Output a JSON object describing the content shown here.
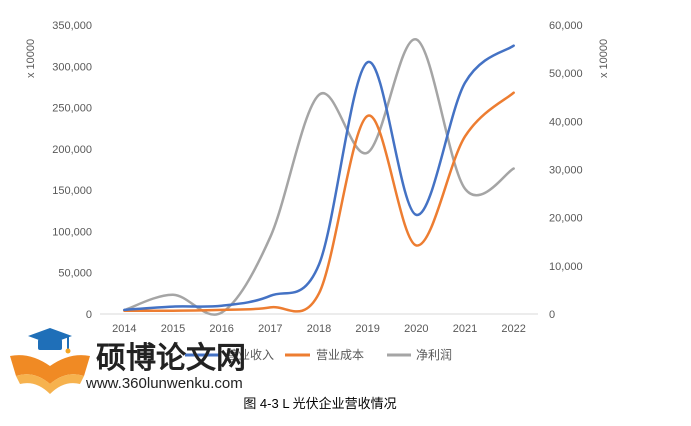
{
  "chart_data": {
    "type": "line",
    "categories": [
      "2014",
      "2015",
      "2016",
      "2017",
      "2018",
      "2019",
      "2020",
      "2021",
      "2022"
    ],
    "series": [
      {
        "name": "营业收入",
        "axis": "left",
        "color": "#4472C4",
        "values": [
          5000,
          9000,
          10000,
          22000,
          60000,
          305000,
          120000,
          280000,
          325000
        ]
      },
      {
        "name": "营业成本",
        "axis": "left",
        "color": "#ED7D31",
        "values": [
          4000,
          4000,
          5000,
          8000,
          25000,
          240000,
          83000,
          215000,
          268000
        ]
      },
      {
        "name": "净利润",
        "axis": "right",
        "color": "#A5A5A5",
        "values": [
          800,
          4000,
          300,
          16000,
          45500,
          33500,
          57000,
          26000,
          30200
        ]
      }
    ],
    "y_left": {
      "min": 0,
      "max": 350000,
      "step": 50000,
      "ticks": [
        "0",
        "50,000",
        "100,000",
        "150,000",
        "200,000",
        "250,000",
        "300,000",
        "350,000"
      ],
      "unit": "x 10000"
    },
    "y_right": {
      "min": 0,
      "max": 60000,
      "step": 10000,
      "ticks": [
        "0",
        "10,000",
        "20,000",
        "30,000",
        "40,000",
        "50,000",
        "60,000"
      ],
      "unit": "x 10000"
    },
    "grid": false,
    "legend": "bottom"
  },
  "caption": "图 4-3 L 光伏企业营收情况",
  "watermark": {
    "title": "硕博论文网",
    "url": "www.360lunwenku.com"
  }
}
